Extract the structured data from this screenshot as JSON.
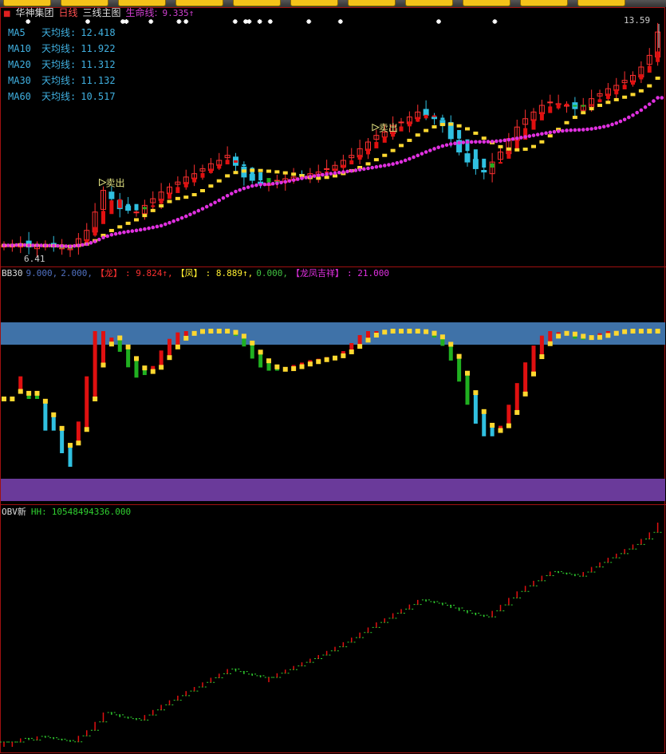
{
  "toolbar": {
    "button_count": 11
  },
  "header": {
    "stock_name": "华神集团",
    "period": "日线",
    "template": "三线主图",
    "life_line_label": "生命线:",
    "life_line_value": "9.335↑"
  },
  "ma_legend": [
    {
      "name": "MA5",
      "label": "天均线:",
      "value": "12.418"
    },
    {
      "name": "MA10",
      "label": "天均线:",
      "value": "11.922"
    },
    {
      "name": "MA20",
      "label": "天均线:",
      "value": "11.312"
    },
    {
      "name": "MA30",
      "label": "天均线:",
      "value": "11.132"
    },
    {
      "name": "MA60",
      "label": "天均线:",
      "value": "10.517"
    }
  ],
  "price_labels": {
    "high": "13.59",
    "low": "6.41"
  },
  "signals": {
    "sell_label": "卖出"
  },
  "bb30": {
    "name": "BB30",
    "p1": "9.000,",
    "p2": "2.000,",
    "dragon_label": "【龙】",
    "dragon_value": ": 9.824↑,",
    "phoenix_label": "【凤】",
    "phoenix_value": ": 8.889↑,",
    "zero_value": "0.000,",
    "lucky_label": "【龙凤吉祥】",
    "lucky_value": ": 21.000"
  },
  "obv": {
    "name": "OBV新",
    "label": "HH:",
    "value": "10548494336.000"
  },
  "colors": {
    "up": "#ff3030",
    "down": "#30c0e0",
    "ribbon_up": "#e01010",
    "ribbon_down": "#20b020",
    "ma_slow": "#ffd830",
    "life_line": "#e030e0",
    "band_top": "#3f72a8",
    "band_bottom": "#6a3a9a"
  },
  "chart_data": {
    "type": "candlestick",
    "price_range": [
      6.41,
      13.59
    ],
    "closes": [
      6.9,
      6.9,
      6.95,
      6.85,
      6.9,
      6.88,
      6.85,
      6.82,
      6.8,
      7.1,
      7.35,
      7.9,
      8.55,
      8.3,
      8.0,
      7.95,
      7.9,
      8.1,
      8.3,
      8.5,
      8.65,
      8.8,
      8.95,
      9.05,
      9.2,
      9.35,
      9.45,
      9.6,
      9.3,
      8.95,
      8.85,
      8.75,
      8.75,
      8.85,
      8.9,
      8.95,
      9.0,
      9.05,
      9.1,
      9.2,
      9.3,
      9.45,
      9.6,
      9.8,
      10.0,
      10.2,
      10.3,
      10.5,
      10.6,
      10.75,
      10.9,
      10.8,
      10.7,
      10.5,
      10.1,
      9.7,
      9.4,
      9.2,
      9.1,
      9.4,
      9.7,
      10.1,
      10.45,
      10.7,
      10.9,
      11.1,
      11.2,
      11.15,
      11.1,
      11.0,
      11.1,
      11.3,
      11.45,
      11.6,
      11.7,
      11.85,
      12.0,
      12.25,
      12.6,
      13.3
    ],
    "sell_signal_indices": [
      12,
      45
    ],
    "star_marker_indices": [
      8,
      25,
      35,
      36,
      43,
      51,
      53,
      67,
      70,
      71,
      74,
      77,
      88,
      97,
      125,
      141
    ]
  }
}
